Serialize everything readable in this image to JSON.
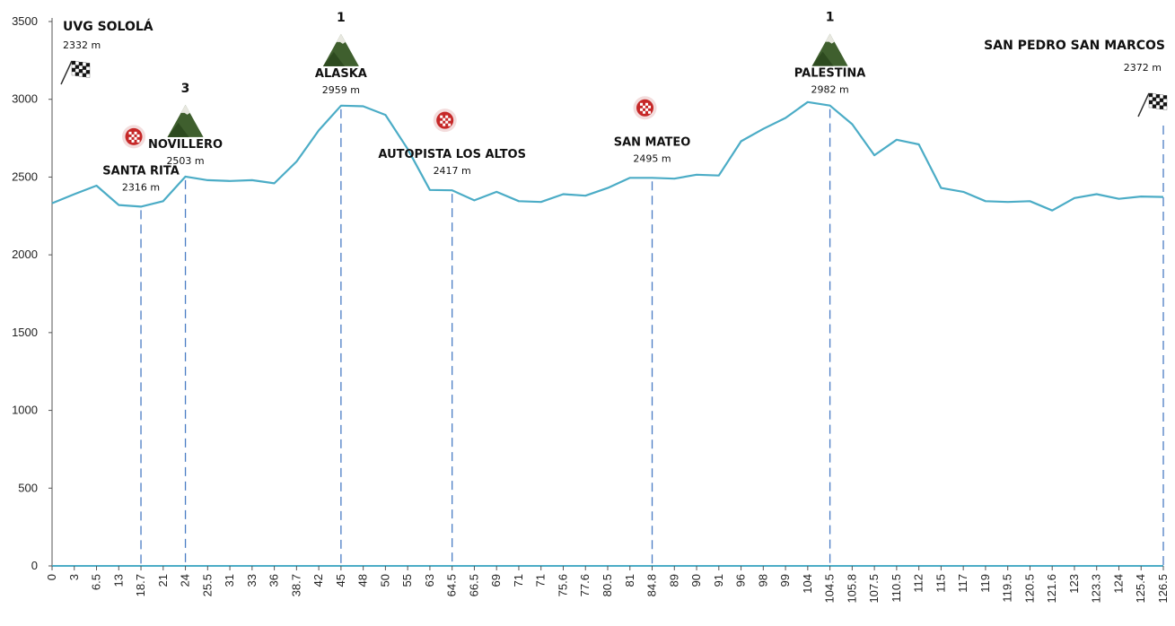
{
  "chart_data": {
    "type": "area",
    "title": "",
    "xlabel": "",
    "ylabel": "",
    "ylim": [
      0,
      3500
    ],
    "yticks": [
      0,
      500,
      1000,
      1500,
      2000,
      2500,
      3000,
      3500
    ],
    "grid": false,
    "line_color": "#4BACC6",
    "categories": [
      "0",
      "3",
      "6.5",
      "13",
      "18.7",
      "21",
      "24",
      "25.5",
      "31",
      "33",
      "36",
      "38.7",
      "42",
      "45",
      "48",
      "50",
      "55",
      "63",
      "64.5",
      "66.5",
      "69",
      "71",
      "71",
      "75.6",
      "77.6",
      "80.5",
      "81",
      "84.8",
      "89",
      "90",
      "91",
      "96",
      "98",
      "99",
      "104",
      "104.5",
      "105.8",
      "107.5",
      "110.5",
      "112",
      "115",
      "117",
      "119",
      "119.5",
      "120.5",
      "121.6",
      "123",
      "123.3",
      "124",
      "125.4",
      "126.5"
    ],
    "values": [
      2332,
      2390,
      2445,
      2320,
      2310,
      2345,
      2503,
      2480,
      2475,
      2480,
      2460,
      2600,
      2800,
      2959,
      2955,
      2900,
      2680,
      2417,
      2415,
      2350,
      2405,
      2345,
      2340,
      2390,
      2380,
      2430,
      2495,
      2495,
      2490,
      2515,
      2510,
      2730,
      2810,
      2880,
      2982,
      2960,
      2840,
      2640,
      2740,
      2710,
      2430,
      2405,
      2345,
      2340,
      2345,
      2285,
      2365,
      2390,
      2360,
      2375,
      2372
    ],
    "points": [
      {
        "name": "UVG SOLOLÁ",
        "elevation": "2332 m",
        "index": 0,
        "icon": "checkered-flag",
        "role": "start"
      },
      {
        "name": "SANTA RITA",
        "elevation": "2316 m",
        "index": 4,
        "icon": "sprint-badge"
      },
      {
        "name": "NOVILLERO",
        "elevation": "2503 m",
        "index": 6,
        "icon": "mountain",
        "category": "3"
      },
      {
        "name": "ALASKA",
        "elevation": "2959 m",
        "index": 13,
        "icon": "mountain",
        "category": "1"
      },
      {
        "name": "AUTOPISTA LOS ALTOS",
        "elevation": "2417 m",
        "index": 18,
        "icon": "sprint-badge"
      },
      {
        "name": "SAN MATEO",
        "elevation": "2495 m",
        "index": 27,
        "icon": "sprint-badge"
      },
      {
        "name": "PALESTINA",
        "elevation": "2982 m",
        "index": 35,
        "icon": "mountain",
        "category": "1"
      },
      {
        "name": "SAN PEDRO SAN MARCOS",
        "elevation": "2372 m",
        "index": 50,
        "icon": "checkered-flag",
        "role": "finish"
      }
    ]
  }
}
